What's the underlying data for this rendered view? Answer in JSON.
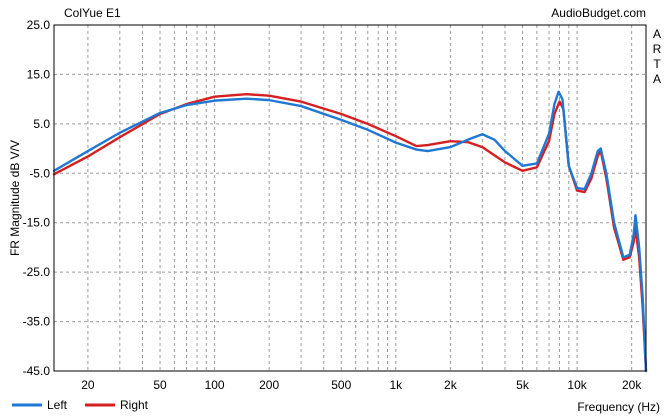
{
  "chart_data": {
    "type": "line",
    "title": "ColYue E1",
    "watermark": "AudioBudget.com",
    "side_label": [
      "A",
      "R",
      "T",
      "A"
    ],
    "ylabel": "FR Magnitude dB V/V",
    "xlabel": "Frequency (Hz)",
    "x_scale": "log",
    "xlim": [
      13,
      24000
    ],
    "ylim": [
      -45,
      25
    ],
    "y_ticks": [
      25.0,
      15.0,
      5.0,
      -5.0,
      -15.0,
      -25.0,
      -35.0,
      -45.0
    ],
    "y_tick_labels": [
      "25.0",
      "15.0",
      "5.0",
      "-5.0",
      "-15.0",
      "-25.0",
      "-35.0",
      "-45.0"
    ],
    "x_ticks": [
      20,
      50,
      100,
      200,
      500,
      1000,
      2000,
      5000,
      10000,
      20000
    ],
    "x_tick_labels": [
      "20",
      "50",
      "100",
      "200",
      "500",
      "1k",
      "2k",
      "5k",
      "10k",
      "20k"
    ],
    "grid": true,
    "legend_position": "bottom-left",
    "series": [
      {
        "name": "Left",
        "color": "#1f78d4",
        "points": [
          [
            13,
            -4.5
          ],
          [
            20,
            -0.5
          ],
          [
            30,
            3.2
          ],
          [
            50,
            7.2
          ],
          [
            70,
            8.8
          ],
          [
            100,
            9.7
          ],
          [
            150,
            10.1
          ],
          [
            200,
            9.8
          ],
          [
            300,
            8.6
          ],
          [
            500,
            5.8
          ],
          [
            700,
            3.8
          ],
          [
            1000,
            1.2
          ],
          [
            1300,
            -0.2
          ],
          [
            1500,
            -0.5
          ],
          [
            2000,
            0.3
          ],
          [
            2500,
            1.8
          ],
          [
            3000,
            2.9
          ],
          [
            3500,
            1.8
          ],
          [
            4000,
            -0.5
          ],
          [
            5000,
            -3.5
          ],
          [
            6000,
            -3.0
          ],
          [
            7000,
            3.0
          ],
          [
            7500,
            9.0
          ],
          [
            7900,
            11.5
          ],
          [
            8300,
            10.0
          ],
          [
            9000,
            -3.5
          ],
          [
            10000,
            -8.0
          ],
          [
            11000,
            -8.2
          ],
          [
            12000,
            -5.0
          ],
          [
            13000,
            -0.5
          ],
          [
            13500,
            0.0
          ],
          [
            14500,
            -5.0
          ],
          [
            16000,
            -15.0
          ],
          [
            18000,
            -22.0
          ],
          [
            19500,
            -21.5
          ],
          [
            20500,
            -17.5
          ],
          [
            21000,
            -13.5
          ],
          [
            22000,
            -20.0
          ],
          [
            23000,
            -30.0
          ],
          [
            24000,
            -45.0
          ]
        ]
      },
      {
        "name": "Right",
        "color": "#d42020",
        "points": [
          [
            13,
            -5.2
          ],
          [
            20,
            -1.6
          ],
          [
            30,
            2.3
          ],
          [
            50,
            7.0
          ],
          [
            70,
            9.0
          ],
          [
            100,
            10.5
          ],
          [
            150,
            11.0
          ],
          [
            200,
            10.7
          ],
          [
            300,
            9.5
          ],
          [
            500,
            7.0
          ],
          [
            700,
            5.0
          ],
          [
            1000,
            2.5
          ],
          [
            1300,
            0.5
          ],
          [
            1500,
            0.7
          ],
          [
            2000,
            1.5
          ],
          [
            2500,
            1.3
          ],
          [
            3000,
            0.3
          ],
          [
            4000,
            -2.8
          ],
          [
            5000,
            -4.5
          ],
          [
            6000,
            -3.8
          ],
          [
            7000,
            1.5
          ],
          [
            7500,
            7.0
          ],
          [
            8000,
            9.5
          ],
          [
            8400,
            8.0
          ],
          [
            9000,
            -3.5
          ],
          [
            10000,
            -8.5
          ],
          [
            11000,
            -8.8
          ],
          [
            12000,
            -6.0
          ],
          [
            13000,
            -1.5
          ],
          [
            13500,
            -0.5
          ],
          [
            14500,
            -6.0
          ],
          [
            16000,
            -16.0
          ],
          [
            18000,
            -22.5
          ],
          [
            19500,
            -22.0
          ],
          [
            20500,
            -19.0
          ],
          [
            21000,
            -16.0
          ],
          [
            22000,
            -22.0
          ],
          [
            23000,
            -32.0
          ],
          [
            24000,
            -45.0
          ]
        ]
      }
    ]
  }
}
